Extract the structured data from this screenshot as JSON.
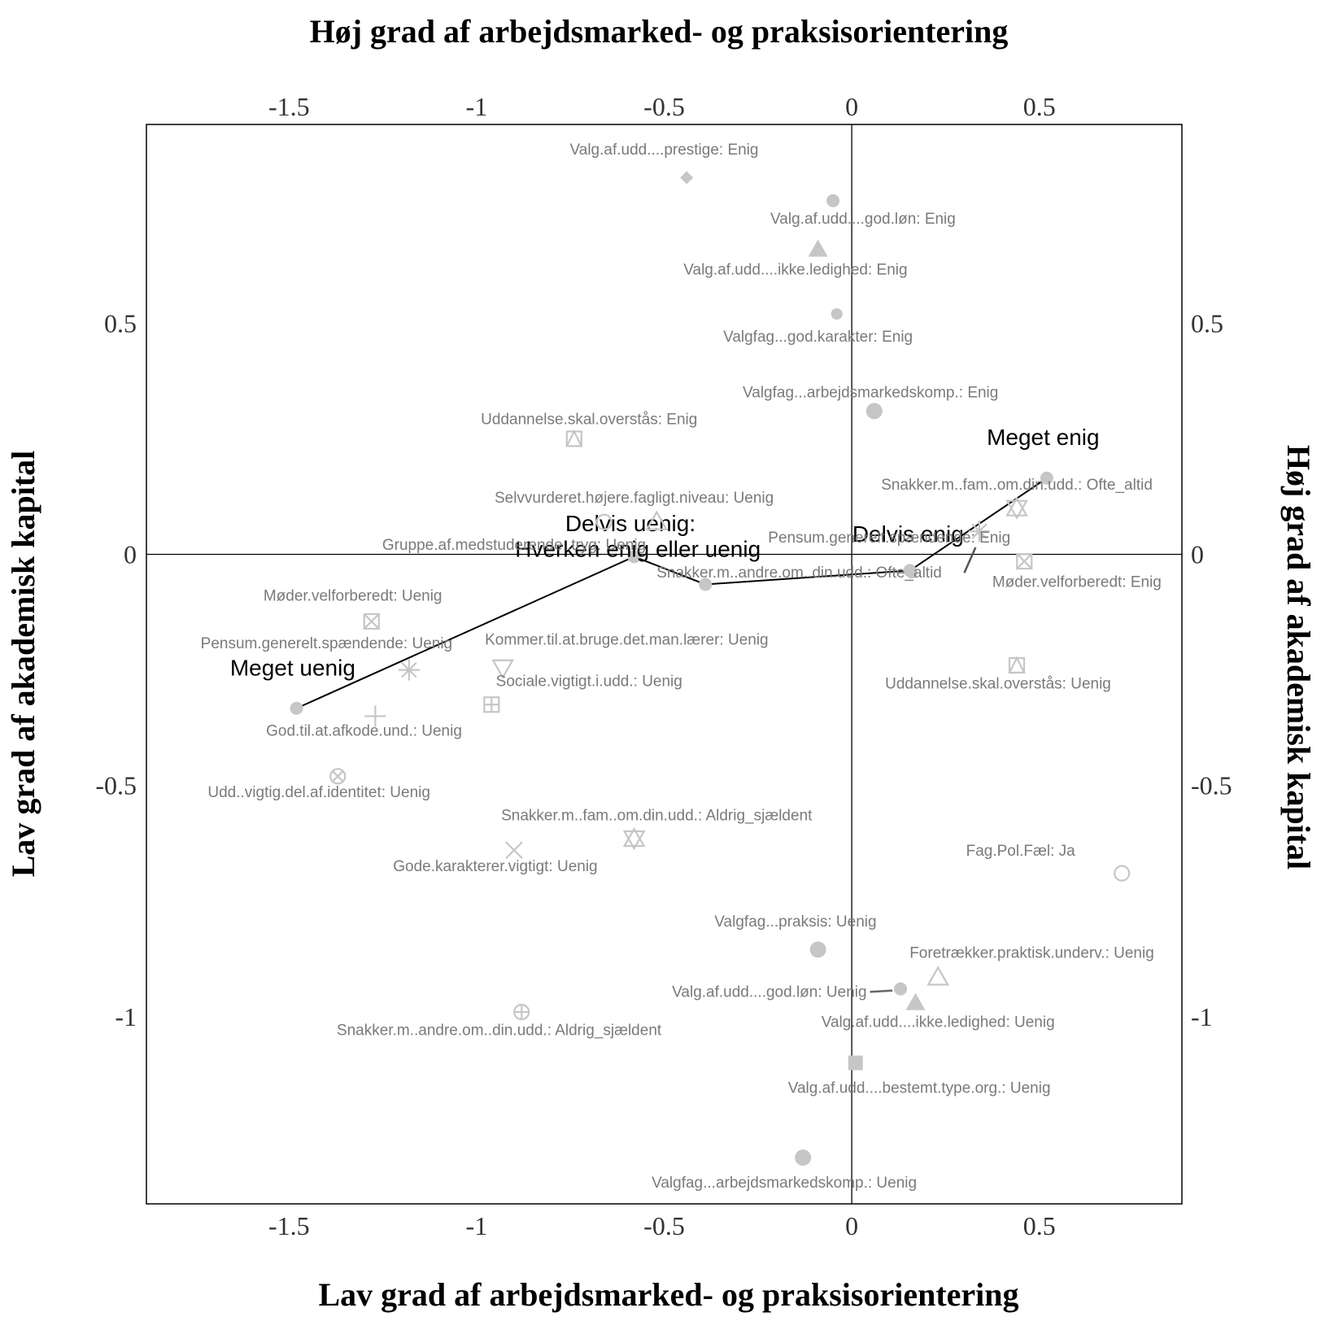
{
  "chart_data": {
    "type": "scatter",
    "axis_titles": {
      "top": "Høj grad af arbejdsmarked- og praksisorientering",
      "bottom": "Lav grad af arbejdsmarked- og praksisorientering",
      "left": "Lav grad af akademisk kapital",
      "right": "Høj grad af akademisk kapital"
    },
    "xlim": [
      -1.88,
      0.88
    ],
    "ylim": [
      -1.405,
      0.93
    ],
    "x_ticks": [
      {
        "value": -1.5,
        "label": "-1.5"
      },
      {
        "value": -1,
        "label": "-1"
      },
      {
        "value": -0.5,
        "label": "-0.5"
      },
      {
        "value": 0,
        "label": "0"
      },
      {
        "value": 0.5,
        "label": "0.5"
      }
    ],
    "y_ticks": [
      {
        "value": 0.5,
        "label": "0.5"
      },
      {
        "value": 0,
        "label": "0"
      },
      {
        "value": -0.5,
        "label": "-0.5"
      },
      {
        "value": -1,
        "label": "-1"
      }
    ],
    "grid": false,
    "reference_lines": {
      "x": 0,
      "y": 0
    },
    "points": [
      {
        "label": "Valg.af.udd....prestige: Enig",
        "x": -0.44,
        "y": 0.815,
        "marker": "diamond",
        "lx": -0.5,
        "ly": 0.865,
        "anchor": "middle"
      },
      {
        "label": "Valg.af.udd....god.løn: Enig",
        "x": -0.05,
        "y": 0.765,
        "marker": "circle",
        "lx": 0.03,
        "ly": 0.715,
        "anchor": "middle"
      },
      {
        "label": "Valg.af.udd....ikke.ledighed: Enig",
        "x": -0.09,
        "y": 0.66,
        "marker": "triangle",
        "lx": -0.15,
        "ly": 0.605,
        "anchor": "middle"
      },
      {
        "label": "Valgfag...god.karakter: Enig",
        "x": -0.04,
        "y": 0.52,
        "marker": "circle-small",
        "lx": -0.09,
        "ly": 0.46,
        "anchor": "middle"
      },
      {
        "label": "Valgfag...arbejdsmarkedskomp.: Enig",
        "x": 0.06,
        "y": 0.31,
        "marker": "circle-large",
        "lx": 0.05,
        "ly": 0.34,
        "anchor": "middle"
      },
      {
        "label": "Uddannelse.skal.overstås: Enig",
        "x": -0.74,
        "y": 0.25,
        "marker": "square-triangle",
        "lx": -0.7,
        "ly": 0.282,
        "anchor": "middle"
      },
      {
        "label": "Snakker.m..fam..om.din.udd.: Ofte_altid",
        "x": 0.44,
        "y": 0.1,
        "marker": "star-david",
        "lx": 0.44,
        "ly": 0.14,
        "anchor": "middle"
      },
      {
        "label": "Pensum.generelt.spændende: Enig",
        "x": 0.34,
        "y": 0.05,
        "marker": "asterisk",
        "lx": 0.1,
        "ly": 0.026,
        "anchor": "middle"
      },
      {
        "label": "Møder.velforberedt: Enig",
        "x": 0.46,
        "y": -0.015,
        "marker": "square-x",
        "lx": 0.6,
        "ly": -0.07,
        "anchor": "middle"
      },
      {
        "label": "Uddannelse.skal.overstås: Uenig",
        "x": 0.44,
        "y": -0.24,
        "marker": "square-triangle",
        "lx": 0.39,
        "ly": -0.29,
        "anchor": "middle"
      },
      {
        "label": "Selvvurderet.højere.fagligt.niveau: Uenig",
        "x": -0.52,
        "y": 0.07,
        "marker": "triangle-open",
        "lx": -0.58,
        "ly": 0.112,
        "anchor": "middle"
      },
      {
        "label": "Gruppe.af.medstuderende..tryg: Uenig",
        "x": -0.66,
        "y": 0.07,
        "marker": "circle-open",
        "lx": -0.9,
        "ly": 0.01,
        "anchor": "middle"
      },
      {
        "label": "Snakker.m..andre.om..din.udd.: Ofte_altid",
        "x": 0.16,
        "y": -0.04,
        "marker": "circle-small",
        "lx": -0.14,
        "ly": -0.05,
        "anchor": "middle"
      },
      {
        "label": "Møder.velforberedt: Uenig",
        "x": -1.28,
        "y": -0.145,
        "marker": "square-x",
        "lx": -1.33,
        "ly": -0.1,
        "anchor": "middle"
      },
      {
        "label": "Pensum.generelt.spændende: Uenig",
        "x": -1.18,
        "y": -0.25,
        "marker": "asterisk",
        "lx": -1.4,
        "ly": -0.203,
        "anchor": "middle"
      },
      {
        "label": "Kommer.til.at.bruge.det.man.lærer: Uenig",
        "x": -0.93,
        "y": -0.245,
        "marker": "triangle-down",
        "lx": -0.6,
        "ly": -0.195,
        "anchor": "middle"
      },
      {
        "label": "Sociale.vigtigt.i.udd.: Uenig",
        "x": -0.96,
        "y": -0.325,
        "marker": "square-plus",
        "lx": -0.7,
        "ly": -0.285,
        "anchor": "middle"
      },
      {
        "label": "God.til.at.afkode.und.: Uenig",
        "x": -1.27,
        "y": -0.35,
        "marker": "plus",
        "lx": -1.3,
        "ly": -0.392,
        "anchor": "middle"
      },
      {
        "label": "Udd..vigtig.del.af.identitet: Uenig",
        "x": -1.37,
        "y": -0.48,
        "marker": "circle-x",
        "lx": -1.42,
        "ly": -0.525,
        "anchor": "middle"
      },
      {
        "label": "Snakker.m..fam..om.din.udd.: Aldrig_sjældent",
        "x": -0.58,
        "y": -0.615,
        "marker": "star-david",
        "lx": -0.52,
        "ly": -0.575,
        "anchor": "middle"
      },
      {
        "label": "Gode.karakterer.vigtigt: Uenig",
        "x": -0.9,
        "y": -0.64,
        "marker": "cross",
        "lx": -0.95,
        "ly": -0.685,
        "anchor": "middle"
      },
      {
        "label": "Fag.Pol.Fæl: Ja",
        "x": 0.72,
        "y": -0.69,
        "marker": "circle-open",
        "lx": 0.45,
        "ly": -0.652,
        "anchor": "middle"
      },
      {
        "label": "Valgfag...praksis: Uenig",
        "x": -0.09,
        "y": -0.855,
        "marker": "circle-large",
        "lx": -0.15,
        "ly": -0.805,
        "anchor": "middle"
      },
      {
        "label": "Foretrækker.praktisk.underv.: Uenig",
        "x": 0.23,
        "y": -0.915,
        "marker": "triangle-open",
        "lx": 0.48,
        "ly": -0.873,
        "anchor": "middle"
      },
      {
        "label": "Valg.af.udd....god.løn: Uenig",
        "x": 0.13,
        "y": -0.94,
        "marker": "circle",
        "lx": 0.04,
        "ly": -0.957,
        "anchor": "end"
      },
      {
        "label": "Valg.af.udd....ikke.ledighed: Uenig",
        "x": 0.17,
        "y": -0.97,
        "marker": "triangle",
        "lx": 0.23,
        "ly": -1.022,
        "anchor": "middle"
      },
      {
        "label": "Snakker.m..andre.om..din.udd.: Aldrig_sjældent",
        "x": -0.88,
        "y": -0.99,
        "marker": "circle-plus",
        "lx": -0.94,
        "ly": -1.04,
        "anchor": "middle"
      },
      {
        "label": "Valg.af.udd....bestemt.type.org.: Uenig",
        "x": 0.01,
        "y": -1.1,
        "marker": "square",
        "lx": 0.18,
        "ly": -1.165,
        "anchor": "middle"
      },
      {
        "label": "Valgfag...arbejdsmarkedskomp.: Uenig",
        "x": -0.13,
        "y": -1.305,
        "marker": "circle-large",
        "lx": -0.18,
        "ly": -1.37,
        "anchor": "middle"
      }
    ],
    "series": [
      {
        "marker": "circle",
        "points": [
          {
            "x": -1.48,
            "y": -0.333,
            "label": "Meget uenig",
            "lx": -1.49,
            "ly": -0.262,
            "anchor": "middle"
          },
          {
            "x": -0.58,
            "y": -0.005,
            "label": "Delvis uenig:",
            "lx": -0.59,
            "ly": 0.05,
            "anchor": "middle"
          },
          {
            "x": -0.39,
            "y": -0.065,
            "label": "Hverken enig eller uenig",
            "lx": -0.57,
            "ly": -0.005,
            "anchor": "middle"
          },
          {
            "x": 0.155,
            "y": -0.035,
            "label": "Delvis enig",
            "lx": 0.15,
            "ly": 0.027,
            "anchor": "middle"
          },
          {
            "x": 0.52,
            "y": 0.165,
            "label": "Meget enig",
            "lx": 0.51,
            "ly": 0.237,
            "anchor": "middle"
          }
        ]
      }
    ]
  }
}
